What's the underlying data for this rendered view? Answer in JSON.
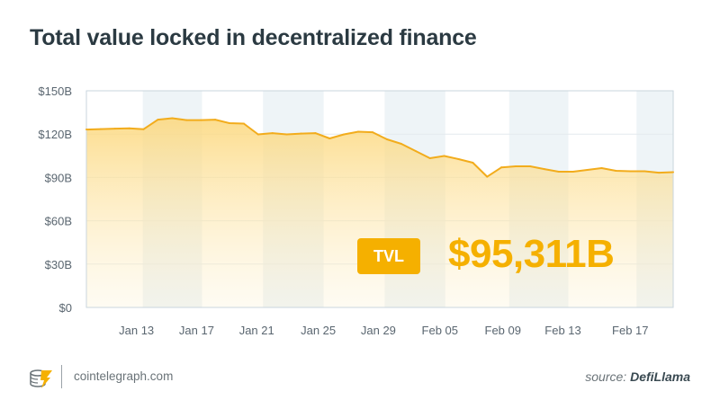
{
  "title": "Total value locked in decentralized finance",
  "tvl_label": "TVL",
  "tvl_value": "$95,311B",
  "footer": {
    "site": "cointelegraph.com",
    "source_prefix": "source:",
    "source_name": "DefiLlama"
  },
  "colors": {
    "accent": "#f5b000",
    "line": "#f2ac1c",
    "band": "#eef4f7",
    "text": "#2b3a42"
  },
  "chart_data": {
    "type": "area",
    "title": "Total value locked in decentralized finance",
    "xlabel": "",
    "ylabel": "",
    "ylim": [
      0,
      150
    ],
    "yticks": [
      0,
      30,
      60,
      90,
      120,
      150
    ],
    "ytick_labels": [
      "$0",
      "$30B",
      "$60B",
      "$90B",
      "$120B",
      "$150B"
    ],
    "xtick_labels": [
      "Jan 13",
      "Jan 17",
      "Jan 21",
      "Jan 25",
      "Jan 29",
      "Feb 05",
      "Feb 09",
      "Feb 13",
      "Feb 17"
    ],
    "xtick_positions": [
      3.5,
      7.7,
      11.9,
      16.2,
      20.4,
      24.7,
      29.1,
      33.3,
      38.0
    ],
    "grid": true,
    "values": [
      123.2,
      123.5,
      123.8,
      124,
      123.4,
      130,
      131,
      129.7,
      129.7,
      130,
      127.6,
      127.3,
      119.8,
      120.7,
      119.8,
      120.4,
      120.7,
      117,
      119.8,
      121.7,
      121.3,
      116.4,
      113.3,
      108.3,
      103.3,
      104.9,
      102.7,
      100.2,
      90.5,
      97,
      97.7,
      97.7,
      95.8,
      94,
      94,
      95.2,
      96.5,
      94.6,
      94.3,
      94.3,
      93.3,
      93.7
    ]
  }
}
